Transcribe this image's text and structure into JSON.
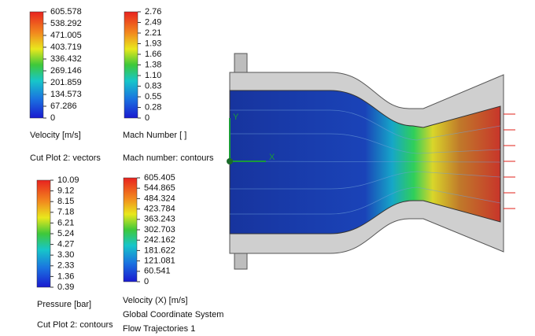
{
  "legends": [
    {
      "ticks": [
        "605.578",
        "538.292",
        "471.005",
        "403.719",
        "336.432",
        "269.146",
        "201.859",
        "134.573",
        "67.286",
        "0"
      ],
      "title": "Velocity [m/s]",
      "captions": [
        "Cut Plot 2: vectors"
      ]
    },
    {
      "ticks": [
        "2.76",
        "2.49",
        "2.21",
        "1.93",
        "1.66",
        "1.38",
        "1.10",
        "0.83",
        "0.55",
        "0.28",
        "0"
      ],
      "title": "Mach Number [ ]",
      "captions": [
        "Mach number: contours"
      ]
    },
    {
      "ticks": [
        "10.09",
        "9.12",
        "8.15",
        "7.18",
        "6.21",
        "5.24",
        "4.27",
        "3.30",
        "2.33",
        "1.36",
        "0.39"
      ],
      "title": "Pressure [bar]",
      "captions": [
        "Cut Plot 2: contours"
      ]
    },
    {
      "ticks": [
        "605.405",
        "544.865",
        "484.324",
        "423.784",
        "363.243",
        "302.703",
        "242.162",
        "181.622",
        "121.081",
        "60.541",
        "0"
      ],
      "title": "Velocity (X) [m/s]",
      "captions": [
        "Global Coordinate System",
        "Flow Trajectories 1"
      ]
    }
  ],
  "triad": {
    "y": "Y",
    "x": "X"
  }
}
